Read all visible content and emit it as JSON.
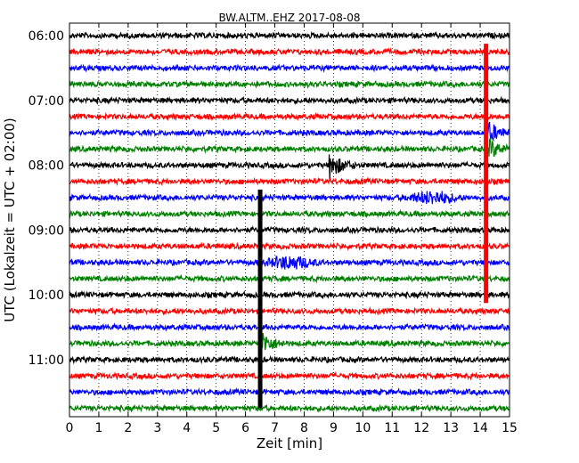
{
  "chart_data": {
    "type": "line",
    "title": "BW.ALTM..EHZ 2017-08-08",
    "xlabel": "Zeit  [min]",
    "ylabel": "UTC (Lokalzeit = UTC + 02:00)",
    "xlim": [
      0,
      15
    ],
    "x_ticks": [
      "0",
      "1",
      "2",
      "3",
      "4",
      "5",
      "6",
      "7",
      "8",
      "9",
      "10",
      "11",
      "12",
      "13",
      "14",
      "15"
    ],
    "y_ticks": [
      "06:00",
      "07:00",
      "08:00",
      "09:00",
      "10:00",
      "11:00"
    ],
    "grid": true,
    "trace_interval_minutes": 15,
    "first_trace": "06:00",
    "trace_count": 24,
    "trace_colors": [
      "#000000",
      "#ff0000",
      "#0000ff",
      "#008000"
    ],
    "events": [
      {
        "trace": "07:30",
        "minute": 14.2,
        "type": "spike"
      },
      {
        "trace": "07:45",
        "minute": 14.2,
        "type": "spike"
      },
      {
        "trace": "08:00",
        "minute": 8.9,
        "type": "spike"
      },
      {
        "trace": "08:30",
        "minute": 12.4,
        "type": "burst"
      },
      {
        "trace": "09:30",
        "minute": 7.5,
        "type": "burst"
      },
      {
        "trace": "10:45",
        "minute": 6.5,
        "type": "spike"
      }
    ]
  }
}
